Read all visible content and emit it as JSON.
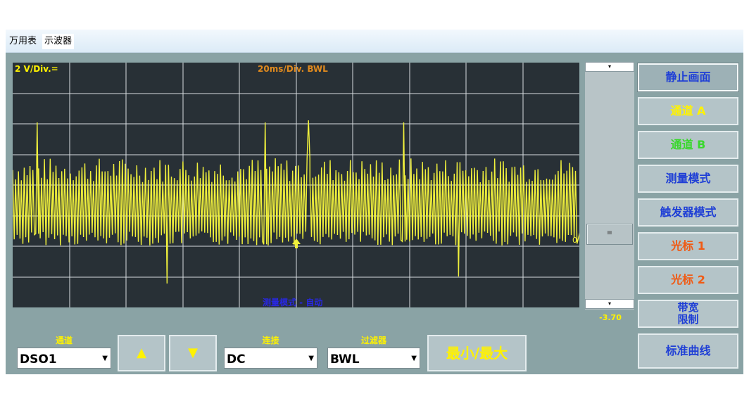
{
  "tabs": [
    {
      "label": "万用表",
      "active": false
    },
    {
      "label": "示波器",
      "active": true
    }
  ],
  "screen": {
    "volt_div": "2 V/Div.=",
    "time_div": "20ms/Div. BWL",
    "measure_mode": "测量模式 - 自动",
    "channel_marker": "0"
  },
  "scroll": {
    "up_arrow": "▾",
    "down_arrow": "▾",
    "thumb_label": "≡",
    "value": "-3.70"
  },
  "right_buttons": [
    {
      "label": "静止画面",
      "color": "#1f3fd6"
    },
    {
      "label": "通道 A",
      "color": "#fff200"
    },
    {
      "label": "通道 B",
      "color": "#39d82c"
    },
    {
      "label": "测量模式",
      "color": "#1f3fd6"
    },
    {
      "label": "触发器模式",
      "color": "#1f3fd6"
    },
    {
      "label": "光标 1",
      "color": "#f05a14"
    },
    {
      "label": "光标 2",
      "color": "#f05a14"
    },
    {
      "label_line1": "带宽",
      "label_line2": "限制",
      "color": "#1f3fd6"
    },
    {
      "label": "标准曲线",
      "color": "#1f3fd6"
    }
  ],
  "bottom": {
    "channel": {
      "label": "通道",
      "value": "DSO1"
    },
    "up_button": "▲",
    "down_button": "▼",
    "coupling": {
      "label": "连接",
      "value": "DC"
    },
    "filter": {
      "label": "过滤器",
      "value": "BWL"
    },
    "minmax_button": "最小/最大"
  },
  "colors": {
    "trace": "#f0f03c",
    "grid": "#e8ecee",
    "screen_bg": "#283036",
    "panel_bg": "#8aa3a5"
  }
}
